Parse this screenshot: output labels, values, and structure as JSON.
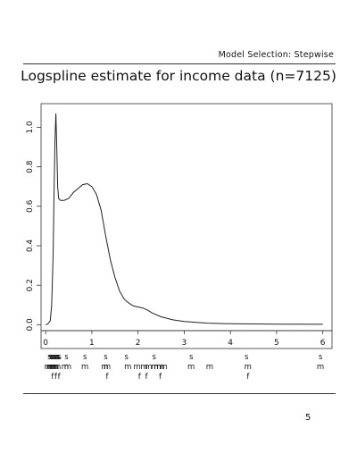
{
  "page": {
    "header": "Model Selection: Stepwise",
    "title": "Logspline estimate for income data (n=7125)",
    "page_number": "5"
  },
  "chart_data": {
    "type": "line",
    "title": "Logspline estimate for income data (n=7125)",
    "xlabel": "",
    "ylabel": "",
    "xlim": [
      -0.1,
      6.2
    ],
    "ylim": [
      -0.03,
      1.12
    ],
    "x_ticks": [
      "0",
      "1",
      "2",
      "3",
      "4",
      "5",
      "6"
    ],
    "y_ticks": [
      "0.0",
      "0.2",
      "0.4",
      "0.6",
      "0.8",
      "1.0"
    ],
    "grid": false,
    "series": [
      {
        "points": [
          [
            0.0,
            0.0
          ],
          [
            0.05,
            0.005
          ],
          [
            0.1,
            0.02
          ],
          [
            0.13,
            0.1
          ],
          [
            0.16,
            0.35
          ],
          [
            0.18,
            0.65
          ],
          [
            0.2,
            0.92
          ],
          [
            0.22,
            1.07
          ],
          [
            0.24,
            0.9
          ],
          [
            0.26,
            0.7
          ],
          [
            0.28,
            0.64
          ],
          [
            0.32,
            0.63
          ],
          [
            0.4,
            0.63
          ],
          [
            0.5,
            0.64
          ],
          [
            0.6,
            0.67
          ],
          [
            0.7,
            0.69
          ],
          [
            0.8,
            0.71
          ],
          [
            0.9,
            0.715
          ],
          [
            1.0,
            0.7
          ],
          [
            1.1,
            0.66
          ],
          [
            1.2,
            0.58
          ],
          [
            1.3,
            0.45
          ],
          [
            1.4,
            0.33
          ],
          [
            1.5,
            0.24
          ],
          [
            1.6,
            0.17
          ],
          [
            1.7,
            0.13
          ],
          [
            1.8,
            0.11
          ],
          [
            1.9,
            0.095
          ],
          [
            2.0,
            0.09
          ],
          [
            2.1,
            0.085
          ],
          [
            2.2,
            0.075
          ],
          [
            2.3,
            0.06
          ],
          [
            2.5,
            0.04
          ],
          [
            2.75,
            0.025
          ],
          [
            3.0,
            0.016
          ],
          [
            3.5,
            0.008
          ],
          [
            4.0,
            0.005
          ],
          [
            5.0,
            0.003
          ],
          [
            6.0,
            0.002
          ]
        ]
      }
    ],
    "knot_rows": [
      {
        "letter": "s",
        "knots": [
          0.08,
          0.1,
          0.12,
          0.14,
          0.16,
          0.18,
          0.2,
          0.22,
          0.24,
          0.26,
          0.28,
          0.3,
          0.45,
          0.85,
          1.3,
          1.75,
          2.35,
          3.15,
          4.35,
          5.95
        ]
      },
      {
        "letter": "m",
        "knots": [
          0.05,
          0.09,
          0.13,
          0.17,
          0.21,
          0.25,
          0.42,
          0.48,
          0.85,
          1.28,
          1.33,
          1.78,
          1.98,
          2.13,
          2.23,
          2.36,
          2.42,
          2.48,
          2.56,
          3.15,
          3.55,
          4.38,
          5.95
        ]
      },
      {
        "letter": "f",
        "knots": [
          0.15,
          0.22,
          0.29,
          1.33,
          2.03,
          2.18,
          2.48,
          4.38
        ]
      }
    ]
  }
}
